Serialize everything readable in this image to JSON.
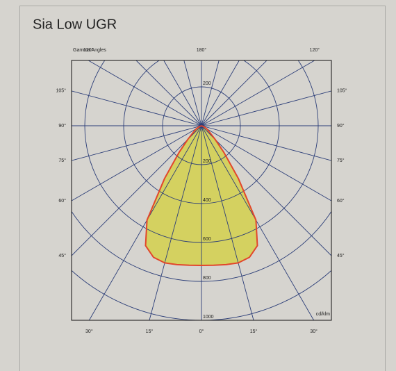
{
  "chart_data": {
    "type": "polar",
    "title": "Sia Low UGR",
    "angle_axis_label": "Gamma Angles",
    "unit_label": "cd/klm",
    "rlim": [
      0,
      1000
    ],
    "rticks": [
      200,
      400,
      600,
      800,
      1000
    ],
    "left_ticks": [
      {
        "value": 120,
        "label": "120°"
      },
      {
        "value": 105,
        "label": "105°"
      },
      {
        "value": 90,
        "label": "90°"
      },
      {
        "value": 75,
        "label": "75°"
      },
      {
        "value": 60,
        "label": "60°"
      },
      {
        "value": 45,
        "label": "45°"
      },
      {
        "value": 30,
        "label": "30°"
      },
      {
        "value": 15,
        "label": "15°"
      }
    ],
    "right_ticks": [
      {
        "value": 120,
        "label": "120°"
      },
      {
        "value": 105,
        "label": "105°"
      },
      {
        "value": 90,
        "label": "90°"
      },
      {
        "value": 75,
        "label": "75°"
      },
      {
        "value": 60,
        "label": "60°"
      },
      {
        "value": 45,
        "label": "45°"
      },
      {
        "value": 30,
        "label": "30°"
      },
      {
        "value": 15,
        "label": "15°"
      }
    ],
    "bottom_tick": {
      "value": 0,
      "label": "0°"
    },
    "top_tick": {
      "value": 180,
      "label": "180°"
    },
    "curve": {
      "color": "#d4d160",
      "line_color": "#e2462b",
      "angles": [
        0,
        5,
        10,
        15,
        20,
        25,
        30,
        35,
        40,
        45,
        50,
        60,
        70,
        90
      ],
      "values": [
        718,
        720,
        725,
        730,
        720,
        680,
        560,
        330,
        180,
        100,
        60,
        30,
        10,
        0
      ]
    }
  }
}
